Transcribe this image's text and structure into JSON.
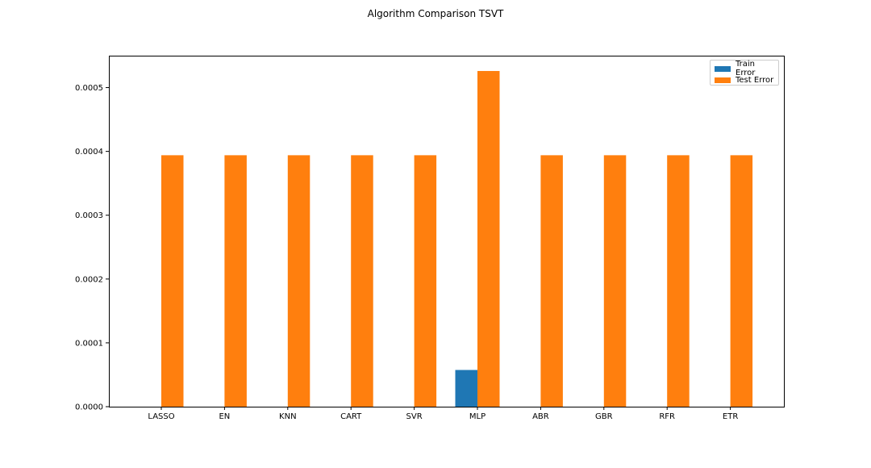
{
  "chart_data": {
    "type": "bar",
    "title": "Algorithm Comparison TSVT",
    "xlabel": "",
    "ylabel": "",
    "categories": [
      "LASSO",
      "EN",
      "KNN",
      "CART",
      "SVR",
      "MLP",
      "ABR",
      "GBR",
      "RFR",
      "ETR"
    ],
    "series": [
      {
        "name": "Train Error",
        "color": "#1f77b4",
        "values": [
          0,
          0,
          0,
          0,
          0,
          5.75e-05,
          0,
          0,
          0,
          0
        ]
      },
      {
        "name": "Test Error",
        "color": "#ff7f0e",
        "values": [
          0.000394,
          0.000394,
          0.000394,
          0.000394,
          0.000394,
          0.000526,
          0.000394,
          0.000394,
          0.000394,
          0.000394
        ]
      }
    ],
    "ylim": [
      0,
      0.00055
    ],
    "yticks": [
      "0.0000",
      "0.0001",
      "0.0002",
      "0.0003",
      "0.0004",
      "0.0005"
    ],
    "grid": false,
    "legend_position": "top-right"
  }
}
